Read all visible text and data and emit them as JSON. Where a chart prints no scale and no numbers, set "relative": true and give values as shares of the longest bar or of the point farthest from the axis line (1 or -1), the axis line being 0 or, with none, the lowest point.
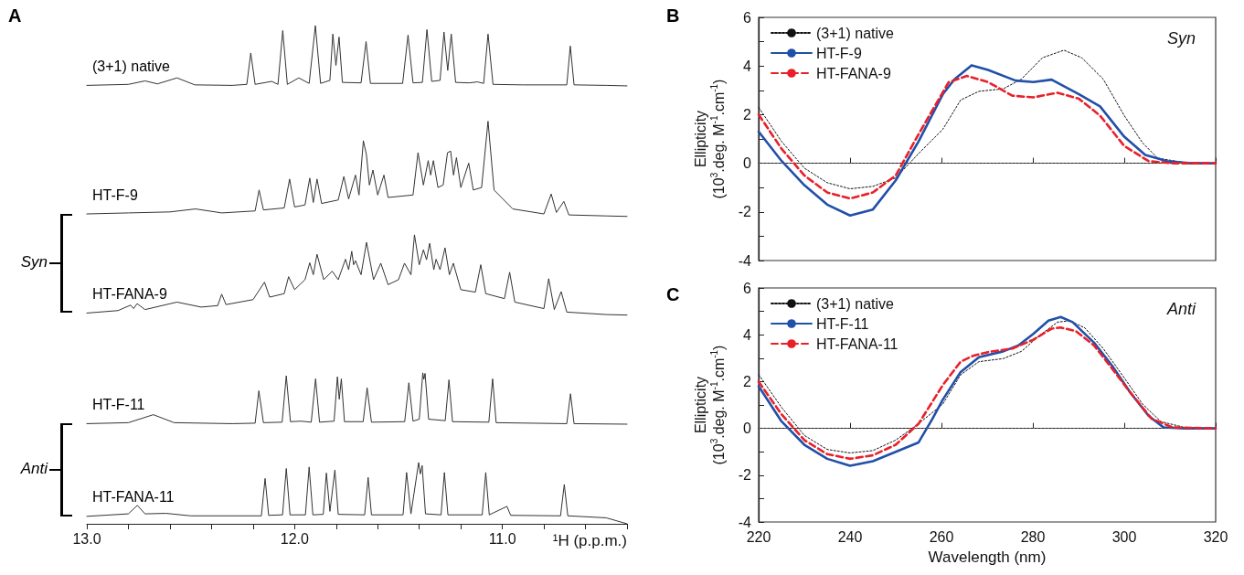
{
  "chart_data": [
    {
      "type": "line",
      "title": "A",
      "xlabel": "¹H (p.p.m.)",
      "relative": true,
      "legend": false,
      "tick_labels": "x",
      "xlim": [
        13.0,
        10.4
      ],
      "xticks": [
        {
          "value": 13,
          "label": "13.0"
        },
        {
          "value": 12.8,
          "label": null
        },
        {
          "value": 12.6,
          "label": null
        },
        {
          "value": 12.4,
          "label": null
        },
        {
          "value": 12.2,
          "label": null
        },
        {
          "value": 12,
          "label": "12.0"
        },
        {
          "value": 11.8,
          "label": null
        },
        {
          "value": 11.6,
          "label": null
        },
        {
          "value": 11.4,
          "label": null
        },
        {
          "value": 11.2,
          "label": null
        },
        {
          "value": 11,
          "label": "11.0"
        },
        {
          "value": 10.8,
          "label": null
        },
        {
          "value": 10.6,
          "label": null
        },
        {
          "value": 10.4,
          "label": null
        }
      ],
      "annotations": [
        "Syn",
        "Anti"
      ],
      "series": [
        {
          "name": "(3+1) native",
          "color": "#333333",
          "x": [
            13.0,
            12.8,
            12.72,
            12.66,
            12.566,
            12.48,
            12.3,
            12.23,
            12.211,
            12.19,
            12.11,
            12.08,
            12.057,
            12.035,
            11.98,
            11.93,
            11.9,
            11.875,
            11.83,
            11.816,
            11.801,
            11.786,
            11.77,
            11.68,
            11.656,
            11.635,
            11.48,
            11.454,
            11.43,
            11.385,
            11.363,
            11.34,
            11.3,
            11.281,
            11.263,
            11.246,
            11.225,
            11.16,
            11.12,
            11.09,
            11.069,
            11.045,
            10.9,
            10.69,
            10.673,
            10.655,
            10.5,
            10.4
          ],
          "values": [
            0.88,
            0.882,
            0.889,
            0.883,
            0.895,
            0.881,
            0.88,
            0.882,
            0.945,
            0.882,
            0.888,
            0.882,
            0.99,
            0.882,
            0.895,
            0.884,
            1.0,
            0.884,
            0.89,
            0.983,
            0.92,
            0.977,
            0.886,
            0.885,
            0.968,
            0.884,
            0.884,
            0.981,
            0.885,
            0.886,
            0.992,
            0.888,
            0.89,
            0.987,
            0.91,
            0.983,
            0.886,
            0.885,
            0.887,
            0.884,
            0.983,
            0.882,
            0.881,
            0.881,
            0.959,
            0.881,
            0.88,
            0.879
          ]
        },
        {
          "name": "HT-F-9",
          "color": "#333333",
          "x": [
            13.0,
            12.8,
            12.6,
            12.477,
            12.35,
            12.19,
            12.171,
            12.15,
            12.05,
            12.024,
            12.0,
            11.95,
            11.927,
            11.91,
            11.892,
            11.87,
            11.79,
            11.763,
            11.74,
            11.707,
            11.69,
            11.669,
            11.654,
            11.64,
            11.623,
            11.6,
            11.57,
            11.55,
            11.43,
            11.406,
            11.38,
            11.357,
            11.345,
            11.332,
            11.31,
            11.285,
            11.264,
            11.249,
            11.235,
            11.221,
            11.2,
            11.162,
            11.14,
            11.1,
            11.069,
            11.04,
            10.95,
            10.8,
            10.765,
            10.74,
            10.704,
            10.68,
            10.5,
            10.4
          ],
          "values": [
            0.622,
            0.624,
            0.626,
            0.632,
            0.624,
            0.628,
            0.67,
            0.63,
            0.634,
            0.692,
            0.636,
            0.64,
            0.694,
            0.645,
            0.692,
            0.643,
            0.65,
            0.697,
            0.652,
            0.7,
            0.66,
            0.769,
            0.74,
            0.68,
            0.71,
            0.66,
            0.7,
            0.655,
            0.66,
            0.745,
            0.68,
            0.729,
            0.7,
            0.729,
            0.675,
            0.68,
            0.745,
            0.748,
            0.7,
            0.735,
            0.675,
            0.724,
            0.67,
            0.675,
            0.808,
            0.67,
            0.632,
            0.622,
            0.662,
            0.625,
            0.647,
            0.62,
            0.618,
            0.617
          ]
        },
        {
          "name": "HT-FANA-9",
          "color": "#333333",
          "x": [
            13.0,
            12.85,
            12.789,
            12.775,
            12.758,
            12.72,
            12.566,
            12.45,
            12.37,
            12.351,
            12.33,
            12.2,
            12.145,
            12.12,
            12.05,
            12.029,
            12.0,
            11.95,
            11.927,
            11.91,
            11.892,
            11.86,
            11.819,
            11.79,
            11.755,
            11.74,
            11.725,
            11.716,
            11.707,
            11.68,
            11.654,
            11.62,
            11.585,
            11.55,
            11.5,
            11.471,
            11.44,
            11.423,
            11.4,
            11.38,
            11.365,
            11.35,
            11.33,
            11.319,
            11.3,
            11.276,
            11.255,
            11.236,
            11.2,
            11.13,
            11.104,
            11.08,
            10.99,
            10.965,
            10.94,
            10.8,
            10.777,
            10.75,
            10.717,
            10.69,
            10.5,
            10.4
          ],
          "values": [
            0.423,
            0.428,
            0.439,
            0.432,
            0.442,
            0.43,
            0.445,
            0.435,
            0.438,
            0.461,
            0.44,
            0.45,
            0.485,
            0.455,
            0.462,
            0.496,
            0.47,
            0.49,
            0.524,
            0.5,
            0.541,
            0.49,
            0.507,
            0.49,
            0.531,
            0.51,
            0.547,
            0.52,
            0.528,
            0.5,
            0.565,
            0.49,
            0.523,
            0.48,
            0.49,
            0.523,
            0.5,
            0.58,
            0.52,
            0.55,
            0.53,
            0.563,
            0.51,
            0.531,
            0.51,
            0.554,
            0.5,
            0.523,
            0.47,
            0.465,
            0.52,
            0.462,
            0.452,
            0.505,
            0.445,
            0.432,
            0.492,
            0.43,
            0.466,
            0.425,
            0.42,
            0.419
          ]
        },
        {
          "name": "HT-F-11",
          "color": "#333333",
          "x": [
            13.0,
            12.8,
            12.68,
            12.58,
            12.3,
            12.19,
            12.172,
            12.15,
            12.06,
            12.04,
            12.02,
            11.97,
            11.92,
            11.899,
            11.88,
            11.81,
            11.794,
            11.785,
            11.775,
            11.76,
            11.67,
            11.651,
            11.63,
            11.47,
            11.45,
            11.43,
            11.4,
            11.383,
            11.378,
            11.372,
            11.355,
            11.275,
            11.257,
            11.24,
            11.065,
            11.047,
            11.03,
            10.69,
            10.672,
            10.655,
            10.4
          ],
          "values": [
            0.201,
            0.203,
            0.219,
            0.203,
            0.201,
            0.202,
            0.267,
            0.203,
            0.204,
            0.297,
            0.205,
            0.206,
            0.204,
            0.291,
            0.204,
            0.206,
            0.295,
            0.25,
            0.291,
            0.205,
            0.205,
            0.273,
            0.204,
            0.205,
            0.283,
            0.206,
            0.21,
            0.303,
            0.29,
            0.302,
            0.21,
            0.207,
            0.289,
            0.205,
            0.204,
            0.291,
            0.203,
            0.201,
            0.261,
            0.201,
            0.2
          ]
        },
        {
          "name": "HT-FANA-11",
          "color": "#333333",
          "x": [
            13.0,
            12.8,
            12.757,
            12.72,
            12.619,
            12.5,
            12.16,
            12.142,
            12.125,
            12.058,
            12.04,
            12.022,
            11.948,
            11.93,
            11.912,
            11.862,
            11.847,
            11.83,
            11.806,
            11.79,
            11.663,
            11.646,
            11.63,
            11.478,
            11.461,
            11.44,
            11.403,
            11.395,
            11.386,
            11.37,
            11.295,
            11.279,
            11.262,
            11.097,
            11.08,
            11.063,
            10.978,
            10.96,
            10.72,
            10.702,
            10.685,
            10.5,
            10.4
          ],
          "values": [
            0.015,
            0.02,
            0.037,
            0.02,
            0.021,
            0.016,
            0.016,
            0.091,
            0.017,
            0.018,
            0.111,
            0.018,
            0.018,
            0.114,
            0.018,
            0.019,
            0.102,
            0.025,
            0.108,
            0.019,
            0.018,
            0.093,
            0.018,
            0.018,
            0.103,
            0.02,
            0.123,
            0.1,
            0.117,
            0.02,
            0.018,
            0.103,
            0.018,
            0.018,
            0.103,
            0.018,
            0.035,
            0.017,
            0.016,
            0.079,
            0.016,
            0.012,
            0
          ]
        }
      ]
    },
    {
      "type": "line",
      "title": "B",
      "ylabel": "Ellipticity\n(10$^{3}$.deg. M$^{-1}$.cm$^{-1}$)",
      "legend": "top left",
      "tick_labels": "y",
      "xlim": [
        220,
        320
      ],
      "xticks": [
        220,
        240,
        260,
        280,
        300,
        320
      ],
      "ylim": [
        -4,
        6
      ],
      "yticks": [
        -4,
        {
          "value": -3,
          "label": null
        },
        -2,
        {
          "value": -1,
          "label": null
        },
        0,
        {
          "value": 1,
          "label": null
        },
        2,
        {
          "value": 3,
          "label": null
        },
        4,
        {
          "value": 5,
          "label": null
        },
        6
      ],
      "annotations": [
        "Syn"
      ],
      "ref_lines": [
        {
          "axis": "y",
          "value": 0,
          "line_style": "dotted",
          "color": "#555555"
        }
      ],
      "series": [
        {
          "name": "(3+1) native",
          "color": "#111111",
          "line_style": "dotted",
          "x": [
            220,
            225,
            230,
            235,
            240,
            245,
            250,
            255,
            260.3,
            264.2,
            268.2,
            273.5,
            277.5,
            282.1,
            286.8,
            290.7,
            295.4,
            300,
            304,
            307.3,
            313.2,
            320
          ],
          "values": [
            2.3,
            0.9,
            -0.2,
            -0.8,
            -1.05,
            -0.95,
            -0.6,
            0.4,
            1.4,
            2.6,
            2.96,
            3.06,
            3.46,
            4.34,
            4.65,
            4.34,
            3.46,
            1.96,
            0.84,
            0.21,
            0.03,
            0
          ]
        },
        {
          "name": "HT-F-9",
          "color": "#2150a8",
          "line_style": "solid",
          "x": [
            220,
            225,
            230,
            235,
            240,
            245,
            250,
            255,
            260.3,
            262.9,
            266.6,
            270.2,
            276.2,
            280.1,
            284.1,
            290.1,
            294.7,
            300,
            304.6,
            309.3,
            314.6,
            320
          ],
          "values": [
            1.3,
            0.1,
            -0.9,
            -1.7,
            -2.15,
            -1.9,
            -0.7,
            0.9,
            2.84,
            3.46,
            4.03,
            3.84,
            3.4,
            3.34,
            3.44,
            2.84,
            2.34,
            1.09,
            0.34,
            0.09,
            0,
            0
          ]
        },
        {
          "name": "HT-FANA-9",
          "color": "#e8202a",
          "line_style": "dashed",
          "x": [
            220,
            225,
            230,
            235,
            240,
            245,
            250,
            255,
            261.6,
            265.6,
            270.2,
            275.5,
            280.1,
            285.4,
            290.1,
            294.7,
            300,
            305.3,
            310.6,
            320
          ],
          "values": [
            2.0,
            0.6,
            -0.5,
            -1.2,
            -1.45,
            -1.2,
            -0.5,
            1.2,
            3.34,
            3.59,
            3.34,
            2.78,
            2.71,
            2.9,
            2.65,
            1.96,
            0.71,
            0.09,
            0,
            0
          ]
        }
      ]
    },
    {
      "type": "line",
      "title": "C",
      "xlabel": "Wavelength (nm)",
      "ylabel": "Ellipticity\n(10$^{3}$.deg. M$^{-1}$.cm$^{-1}$)",
      "legend": "top left",
      "xlim": [
        220,
        320
      ],
      "xticks": [
        220,
        240,
        260,
        280,
        300,
        320
      ],
      "ylim": [
        -4,
        6
      ],
      "yticks": [
        -4,
        {
          "value": -3,
          "label": null
        },
        -2,
        {
          "value": -1,
          "label": null
        },
        0,
        {
          "value": 1,
          "label": null
        },
        2,
        {
          "value": 3,
          "label": null
        },
        4,
        {
          "value": 5,
          "label": null
        },
        6
      ],
      "annotations": [
        "Anti"
      ],
      "ref_lines": [
        {
          "axis": "y",
          "value": 0,
          "line_style": "dotted",
          "color": "#555555"
        }
      ],
      "series": [
        {
          "name": "(3+1) native",
          "color": "#111111",
          "line_style": "dotted",
          "x": [
            220,
            225,
            230,
            235,
            240,
            245,
            250,
            255,
            260.3,
            264.2,
            268.2,
            273.5,
            277.5,
            281.5,
            285.4,
            288.1,
            291.4,
            295.4,
            300,
            304,
            308,
            313.2,
            320
          ],
          "values": [
            2.3,
            0.9,
            -0.3,
            -0.9,
            -1.05,
            -0.95,
            -0.5,
            0.2,
            1.04,
            2.29,
            2.85,
            2.98,
            3.29,
            3.98,
            4.54,
            4.6,
            4.29,
            3.41,
            2.16,
            1.04,
            0.29,
            0.04,
            0
          ]
        },
        {
          "name": "HT-F-11",
          "color": "#2150a8",
          "line_style": "solid",
          "x": [
            220,
            225,
            230,
            235,
            240,
            245,
            250,
            255,
            258,
            260.3,
            264.2,
            268.2,
            273.5,
            276.8,
            280.1,
            283.4,
            286.1,
            288.7,
            293.4,
            297.4,
            301.3,
            305.3,
            308.6,
            313.2,
            320
          ],
          "values": [
            1.8,
            0.3,
            -0.7,
            -1.3,
            -1.6,
            -1.4,
            -1.0,
            -0.6,
            0.4,
            1.23,
            2.41,
            3.04,
            3.29,
            3.54,
            4.04,
            4.6,
            4.76,
            4.54,
            3.66,
            2.66,
            1.54,
            0.54,
            0.04,
            0,
            0
          ]
        },
        {
          "name": "HT-FANA-11",
          "color": "#e8202a",
          "line_style": "dashed",
          "x": [
            220,
            225,
            230,
            235,
            240,
            245,
            250,
            255,
            260.3,
            264.2,
            266.9,
            270.2,
            275.5,
            280.1,
            284.1,
            286.1,
            289.4,
            293.4,
            297.4,
            301.3,
            306,
            310.6,
            320
          ],
          "values": [
            2.0,
            0.6,
            -0.5,
            -1.1,
            -1.3,
            -1.15,
            -0.7,
            0.2,
            1.85,
            2.85,
            3.1,
            3.26,
            3.41,
            3.79,
            4.26,
            4.31,
            4.16,
            3.54,
            2.54,
            1.54,
            0.41,
            0.04,
            0
          ]
        }
      ]
    }
  ]
}
